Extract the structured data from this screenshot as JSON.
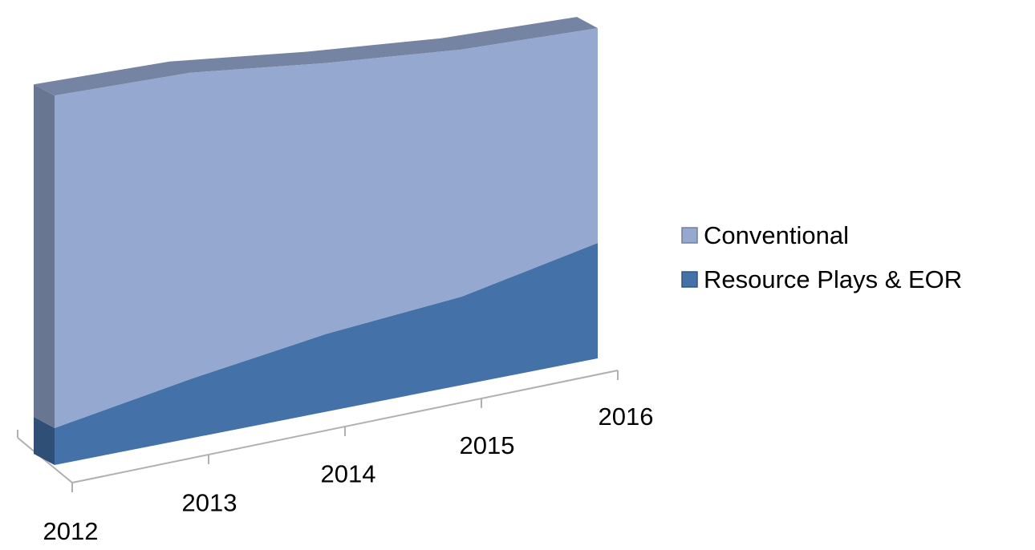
{
  "chart_data": {
    "type": "area3d",
    "categories": [
      "2012",
      "2013",
      "2014",
      "2015",
      "2016"
    ],
    "series": [
      {
        "name": "Resource Plays & EOR",
        "color": "#4571a9",
        "values": [
          48,
          77,
          101,
          115,
          150
        ]
      },
      {
        "name": "Conventional",
        "color": "#95a9d0",
        "values": [
          432,
          398,
          352,
          321,
          279
        ]
      }
    ],
    "stacked": true,
    "ylim": [
      0,
      500
    ],
    "legend": "right"
  }
}
